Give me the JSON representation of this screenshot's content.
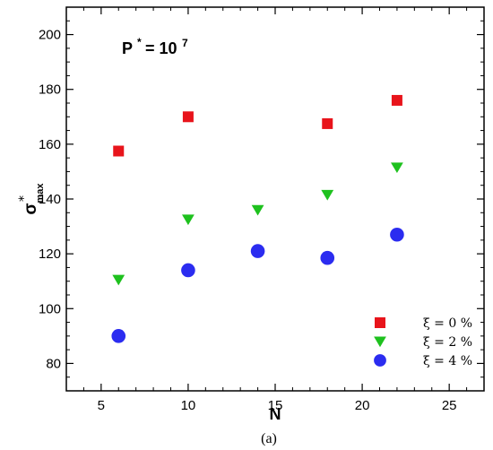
{
  "chart_data": {
    "type": "scatter",
    "xlabel": "N",
    "ylabel": "σ*max",
    "xlim": [
      3,
      27
    ],
    "ylim": [
      70,
      210
    ],
    "xticks": [
      5,
      10,
      15,
      20,
      25
    ],
    "yticks": [
      80,
      100,
      120,
      140,
      160,
      180,
      200
    ],
    "grid": false,
    "legend_position": "bottom-right",
    "annotation": "P * = 10 7",
    "caption": "(a)",
    "series": [
      {
        "name": "ξ = 0 %",
        "marker": "square",
        "color": "#e8141b",
        "x": [
          6,
          10,
          18,
          22
        ],
        "y": [
          157.5,
          170,
          167.5,
          176
        ]
      },
      {
        "name": "ξ = 2 %",
        "marker": "triangle-down",
        "color": "#1ec11e",
        "x": [
          6,
          10,
          14,
          18,
          22
        ],
        "y": [
          110.5,
          132.5,
          136,
          141.5,
          151.5
        ]
      },
      {
        "name": "ξ = 4 %",
        "marker": "circle",
        "color": "#2b2cf0",
        "x": [
          6,
          10,
          14,
          18,
          22
        ],
        "y": [
          90,
          114,
          121,
          118.5,
          127
        ]
      }
    ]
  }
}
